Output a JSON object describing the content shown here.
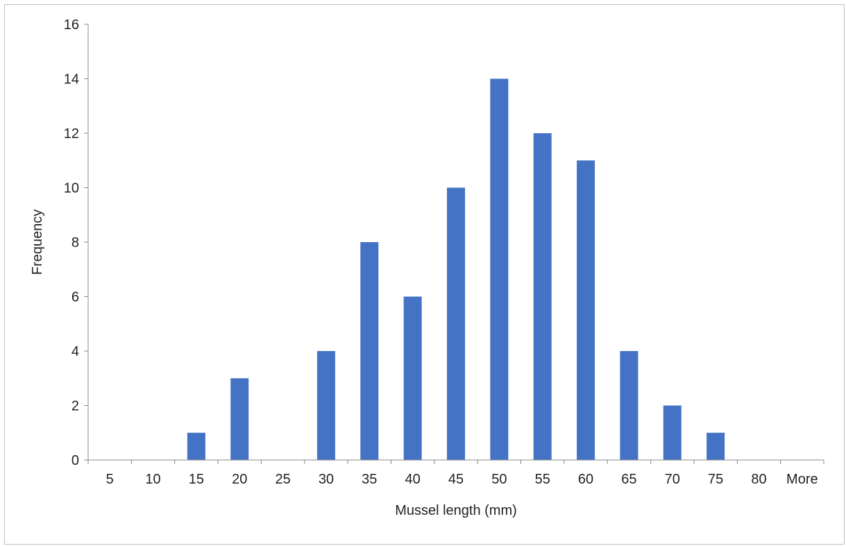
{
  "chart_data": {
    "type": "bar",
    "title": "",
    "xlabel": "Mussel length (mm)",
    "ylabel": "Frequency",
    "categories": [
      "5",
      "10",
      "15",
      "20",
      "25",
      "30",
      "35",
      "40",
      "45",
      "50",
      "55",
      "60",
      "65",
      "70",
      "75",
      "80",
      "More"
    ],
    "values": [
      0,
      0,
      1,
      3,
      0,
      4,
      8,
      6,
      10,
      14,
      12,
      11,
      4,
      2,
      1,
      0,
      0
    ],
    "ylim": [
      0,
      16
    ],
    "yticks": [
      0,
      2,
      4,
      6,
      8,
      10,
      12,
      14,
      16
    ],
    "grid": false,
    "legend": "none",
    "bar_color": "#4472C4",
    "axis_color": "#888888"
  }
}
